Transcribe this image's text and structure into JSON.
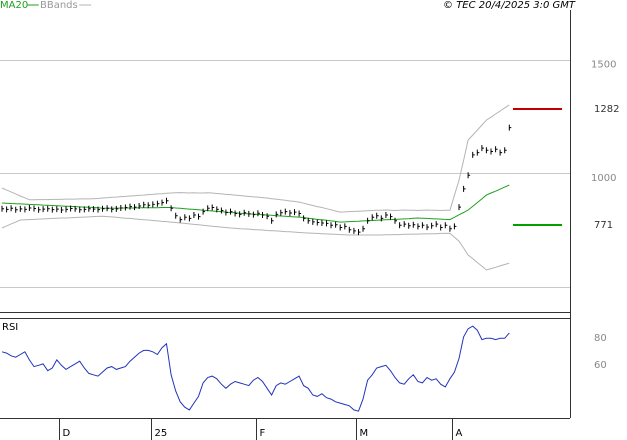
{
  "chart_data": [
    {
      "type": "ohlc-line",
      "source": "© TEC 20/4/2025 3:0 GMT",
      "ylim": [
        388,
        1718
      ],
      "yticks": [
        1000,
        1500
      ],
      "ygrid": [
        500,
        1000,
        1500
      ],
      "levels": [
        {
          "value": 1282,
          "color": "#c00000"
        },
        {
          "value": 771,
          "color": "#00a000"
        }
      ],
      "series": [
        {
          "color": "#000000",
          "values": [
            843,
            840,
            845,
            838,
            842,
            840,
            846,
            844,
            838,
            841,
            843,
            839,
            841,
            837,
            840,
            844,
            842,
            838,
            840,
            843,
            841,
            839,
            843,
            845,
            840,
            842,
            846,
            848,
            852,
            850,
            855,
            860,
            858,
            862,
            865,
            870,
            878,
            845,
            812,
            795,
            805,
            800,
            815,
            808,
            830,
            845,
            848,
            840,
            835,
            826,
            830,
            822,
            818,
            825,
            820,
            817,
            823,
            815,
            810,
            790,
            818,
            825,
            830,
            824,
            828,
            822,
            800,
            790,
            785,
            782,
            780,
            778,
            770,
            772,
            760,
            765,
            750,
            745,
            740,
            755,
            790,
            805,
            812,
            800,
            815,
            808,
            790,
            770,
            775,
            768,
            772,
            765,
            770,
            762,
            768,
            775,
            760,
            770,
            755,
            765,
            850,
            930,
            990,
            1080,
            1090,
            1110,
            1100,
            1095,
            1105,
            1090,
            1100,
            1200
          ]
        },
        {
          "name": "MA20",
          "color": "#1fa01f",
          "values": [
            868,
            867,
            866,
            865,
            864,
            863,
            862,
            861,
            860,
            859,
            858,
            857,
            856,
            855,
            854,
            853,
            852,
            851,
            850,
            849,
            848,
            847,
            845,
            845,
            845,
            845,
            846,
            846,
            846,
            846,
            847,
            847,
            847,
            847,
            847,
            848,
            848,
            848,
            846,
            845,
            843,
            841,
            840,
            838,
            836,
            835,
            833,
            831,
            830,
            828,
            826,
            825,
            823,
            822,
            820,
            819,
            818,
            816,
            815,
            814,
            812,
            811,
            810,
            808,
            807,
            806,
            804,
            801,
            799,
            796,
            794,
            792,
            789,
            787,
            784,
            785,
            786,
            787,
            788,
            789,
            790,
            791,
            792,
            793,
            794,
            795,
            796,
            797,
            798,
            799,
            801,
            802,
            801,
            800,
            799,
            798,
            797,
            796,
            795,
            805,
            816,
            826,
            837,
            853,
            870,
            886,
            903,
            912,
            920,
            929,
            938,
            947
          ]
        },
        {
          "name": "BBands",
          "color": "#b4b4b4",
          "upper": [
            934,
            925,
            917,
            908,
            899,
            891,
            882,
            882,
            883,
            883,
            883,
            884,
            884,
            884,
            885,
            885,
            885,
            886,
            886,
            886,
            887,
            888,
            890,
            891,
            893,
            894,
            896,
            897,
            899,
            900,
            902,
            903,
            905,
            906,
            908,
            909,
            911,
            912,
            913,
            914,
            913,
            912,
            913,
            912,
            912,
            913,
            912,
            910,
            908,
            906,
            905,
            903,
            901,
            899,
            897,
            895,
            894,
            892,
            890,
            887,
            885,
            882,
            880,
            877,
            875,
            872,
            867,
            862,
            857,
            852,
            848,
            843,
            838,
            833,
            828,
            829,
            830,
            831,
            832,
            833,
            834,
            835,
            836,
            836,
            837,
            836,
            835,
            836,
            837,
            836,
            836,
            835,
            836,
            837,
            836,
            836,
            835,
            836,
            836,
            902,
            968,
            1056,
            1145,
            1167,
            1189,
            1211,
            1233,
            1246,
            1260,
            1273,
            1287,
            1300
          ],
          "lower": [
            758,
            767,
            776,
            784,
            793,
            794,
            795,
            796,
            797,
            798,
            799,
            800,
            801,
            802,
            802,
            803,
            804,
            805,
            806,
            807,
            808,
            809,
            810,
            808,
            807,
            805,
            803,
            801,
            800,
            798,
            796,
            794,
            793,
            791,
            789,
            787,
            786,
            784,
            782,
            780,
            778,
            776,
            774,
            772,
            770,
            768,
            766,
            764,
            762,
            760,
            758,
            757,
            755,
            754,
            753,
            751,
            750,
            749,
            747,
            746,
            745,
            744,
            742,
            741,
            740,
            738,
            737,
            736,
            735,
            734,
            733,
            732,
            731,
            730,
            729,
            728,
            727,
            727,
            727,
            727,
            727,
            727,
            727,
            727,
            728,
            728,
            729,
            729,
            730,
            730,
            731,
            731,
            732,
            732,
            733,
            733,
            734,
            734,
            735,
            718,
            700,
            670,
            639,
            623,
            606,
            590,
            573,
            579,
            585,
            591,
            597,
            603
          ]
        }
      ]
    },
    {
      "type": "line",
      "title": "RSI",
      "ylim": [
        18,
        92
      ],
      "yticks": [
        60,
        80
      ],
      "color": "#2233bb",
      "categories": [
        null,
        null,
        null,
        null,
        null,
        null,
        null,
        null,
        null,
        null,
        null,
        null,
        null,
        "D",
        null,
        null,
        null,
        null,
        null,
        null,
        null,
        null,
        null,
        null,
        null,
        null,
        null,
        null,
        null,
        null,
        null,
        null,
        null,
        "25",
        null,
        null,
        null,
        null,
        null,
        null,
        null,
        null,
        null,
        null,
        null,
        null,
        null,
        null,
        null,
        null,
        null,
        null,
        null,
        null,
        null,
        null,
        "F",
        null,
        null,
        null,
        null,
        null,
        null,
        null,
        null,
        null,
        null,
        null,
        null,
        null,
        null,
        null,
        null,
        null,
        null,
        null,
        null,
        null,
        "M",
        null,
        null,
        null,
        null,
        null,
        null,
        null,
        null,
        null,
        null,
        null,
        null,
        null,
        null,
        null,
        null,
        null,
        null,
        null,
        null,
        "A",
        null,
        null,
        null,
        null,
        null,
        null,
        null,
        null,
        null,
        null,
        null,
        null
      ],
      "values": [
        67,
        66,
        64,
        63,
        65,
        67,
        61,
        56,
        57,
        58,
        53,
        55,
        61,
        57,
        54,
        56,
        58,
        60,
        55,
        51,
        50,
        49,
        52,
        55,
        56,
        54,
        55,
        56,
        60,
        63,
        66,
        68,
        68,
        67,
        65,
        70,
        73,
        50,
        38,
        30,
        26,
        24,
        29,
        34,
        44,
        48,
        49,
        47,
        43,
        40,
        43,
        45,
        44,
        43,
        42,
        46,
        48,
        45,
        40,
        35,
        42,
        44,
        43,
        45,
        47,
        49,
        42,
        40,
        35,
        34,
        36,
        33,
        32,
        30,
        29,
        28,
        27,
        24,
        23,
        32,
        46,
        50,
        55,
        56,
        57,
        53,
        48,
        44,
        43,
        47,
        50,
        45,
        44,
        48,
        46,
        47,
        43,
        41,
        47,
        52,
        62,
        78,
        84,
        86,
        83,
        76,
        77,
        77,
        76,
        77,
        77,
        81
      ]
    }
  ]
}
